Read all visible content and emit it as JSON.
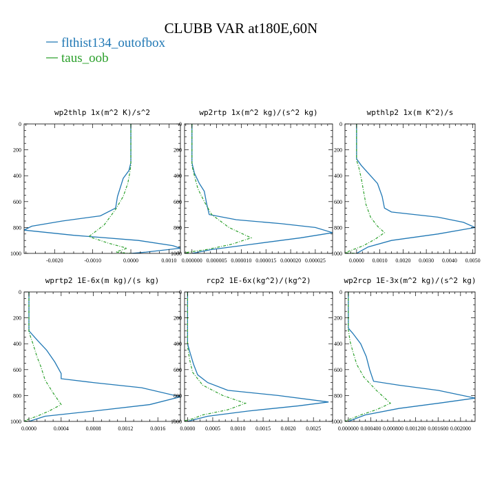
{
  "title": "CLUBB VAR at180E,60N",
  "colors": {
    "series_a": "#1f77b4",
    "series_b": "#2ca02c",
    "axis": "#000000"
  },
  "legend": [
    {
      "label": "flthist134_outofbox",
      "color": "#1f77b4",
      "dashed": false
    },
    {
      "label": "taus_oob",
      "color": "#2ca02c",
      "dashed": true
    }
  ],
  "chart_data": [
    {
      "type": "line",
      "title": "wp2thlp  1x(m^2 K)/s^2",
      "xlim": [
        -0.0028,
        0.0013
      ],
      "ylim": [
        0,
        1000
      ],
      "y_inverted": true,
      "y_ticks": [
        0,
        200,
        400,
        600,
        800,
        1000
      ],
      "x_ticks": [
        -0.002,
        -0.001,
        0.0,
        0.001
      ],
      "x_tick_labels": [
        "-0.0020",
        "-0.0010",
        "0.0000",
        "0.0010"
      ],
      "series": [
        {
          "name": "flthist134_outofbox",
          "points": [
            [
              0,
              0
            ],
            [
              0,
              300
            ],
            [
              -5e-05,
              360
            ],
            [
              -0.0002,
              420
            ],
            [
              -0.00035,
              560
            ],
            [
              -0.0004,
              650
            ],
            [
              -0.0008,
              710
            ],
            [
              -0.0018,
              750
            ],
            [
              -0.0026,
              790
            ],
            [
              -0.0028,
              820
            ],
            [
              -0.0015,
              860
            ],
            [
              0.0002,
              900
            ],
            [
              0.0011,
              940
            ],
            [
              0.0013,
              960
            ],
            [
              0.0004,
              990
            ],
            [
              0,
              1000
            ]
          ]
        },
        {
          "name": "taus_oob",
          "points": [
            [
              0,
              0
            ],
            [
              0,
              320
            ],
            [
              -3e-05,
              380
            ],
            [
              -8e-05,
              460
            ],
            [
              -0.0002,
              560
            ],
            [
              -0.0004,
              660
            ],
            [
              -0.0007,
              780
            ],
            [
              -0.0011,
              870
            ],
            [
              -0.0006,
              920
            ],
            [
              -0.0001,
              960
            ],
            [
              -0.0004,
              990
            ],
            [
              0,
              1000
            ]
          ]
        }
      ]
    },
    {
      "type": "line",
      "title": "wp2rtp  1x(m^2 kg)/(s^2 kg)",
      "xlim": [
        -1.5e-06,
        2.85e-05
      ],
      "ylim": [
        0,
        1000
      ],
      "y_inverted": true,
      "y_ticks": [
        0,
        200,
        400,
        600,
        800,
        1000
      ],
      "x_ticks": [
        0.0,
        5e-06,
        1e-05,
        1.5e-05,
        2e-05,
        2.5e-05
      ],
      "x_tick_labels": [
        "0.000000",
        "0.000005",
        "0.000010",
        "0.000015",
        "0.000020",
        "0.000025"
      ],
      "series": [
        {
          "name": "flthist134_outofbox",
          "points": [
            [
              0,
              0
            ],
            [
              0,
              300
            ],
            [
              5e-07,
              380
            ],
            [
              1.5e-06,
              460
            ],
            [
              2.5e-06,
              520
            ],
            [
              3e-06,
              620
            ],
            [
              3.5e-06,
              700
            ],
            [
              9e-06,
              740
            ],
            [
              1.8e-05,
              770
            ],
            [
              2.5e-05,
              800
            ],
            [
              2.85e-05,
              840
            ],
            [
              2.2e-05,
              880
            ],
            [
              1.2e-05,
              930
            ],
            [
              4e-06,
              970
            ],
            [
              0,
              1000
            ]
          ]
        },
        {
          "name": "taus_oob",
          "points": [
            [
              0,
              0
            ],
            [
              0,
              320
            ],
            [
              5e-07,
              400
            ],
            [
              1.2e-06,
              500
            ],
            [
              2.5e-06,
              600
            ],
            [
              4e-06,
              700
            ],
            [
              7.5e-06,
              800
            ],
            [
              1.2e-05,
              880
            ],
            [
              8e-06,
              930
            ],
            [
              3e-06,
              970
            ],
            [
              -1.5e-06,
              995
            ],
            [
              0,
              1000
            ]
          ]
        }
      ]
    },
    {
      "type": "line",
      "title": "wpthlp2  1x(m K^2)/s",
      "xlim": [
        -0.0005,
        0.0051
      ],
      "ylim": [
        0,
        1000
      ],
      "y_inverted": true,
      "y_ticks": [
        0,
        200,
        400,
        600,
        800,
        1000
      ],
      "x_ticks": [
        0.0,
        0.001,
        0.002,
        0.003,
        0.004,
        0.005
      ],
      "x_tick_labels": [
        "0.0000",
        "0.0010",
        "0.0020",
        "0.0030",
        "0.0040",
        "0.0050"
      ],
      "series": [
        {
          "name": "flthist134_outofbox",
          "points": [
            [
              0,
              0
            ],
            [
              0,
              270
            ],
            [
              0.0002,
              320
            ],
            [
              0.0005,
              380
            ],
            [
              0.0009,
              460
            ],
            [
              0.0011,
              560
            ],
            [
              0.0012,
              650
            ],
            [
              0.0015,
              680
            ],
            [
              0.0035,
              720
            ],
            [
              0.0046,
              760
            ],
            [
              0.0051,
              800
            ],
            [
              0.0035,
              850
            ],
            [
              0.0015,
              900
            ],
            [
              0.0005,
              950
            ],
            [
              0,
              1000
            ]
          ]
        },
        {
          "name": "taus_oob",
          "points": [
            [
              0,
              0
            ],
            [
              0,
              280
            ],
            [
              0.0001,
              340
            ],
            [
              0.0002,
              420
            ],
            [
              0.0003,
              520
            ],
            [
              0.0004,
              620
            ],
            [
              0.0006,
              720
            ],
            [
              0.0009,
              790
            ],
            [
              0.0012,
              840
            ],
            [
              0.0008,
              890
            ],
            [
              0.0003,
              940
            ],
            [
              -0.0005,
              995
            ],
            [
              0,
              1000
            ]
          ]
        }
      ]
    },
    {
      "type": "line",
      "title": "wprtp2  1E-6x(m kg)/(s kg)",
      "xlim": [
        -6e-05,
        0.00188
      ],
      "ylim": [
        0,
        1000
      ],
      "y_inverted": true,
      "y_ticks": [
        0,
        200,
        400,
        600,
        800,
        1000
      ],
      "x_ticks": [
        0.0,
        0.0004,
        0.0008,
        0.0012,
        0.0016
      ],
      "x_tick_labels": [
        "0.0000",
        "0.0004",
        "0.0008",
        "0.0012",
        "0.0016"
      ],
      "series": [
        {
          "name": "flthist134_outofbox",
          "points": [
            [
              0,
              0
            ],
            [
              0,
              300
            ],
            [
              0.0001,
              370
            ],
            [
              0.00022,
              450
            ],
            [
              0.00032,
              540
            ],
            [
              0.0004,
              630
            ],
            [
              0.0004,
              670
            ],
            [
              0.0008,
              700
            ],
            [
              0.0014,
              740
            ],
            [
              0.00188,
              810
            ],
            [
              0.0015,
              870
            ],
            [
              0.0008,
              920
            ],
            [
              0.0002,
              960
            ],
            [
              0,
              1000
            ]
          ]
        },
        {
          "name": "taus_oob",
          "points": [
            [
              0,
              0
            ],
            [
              0,
              310
            ],
            [
              5e-05,
              400
            ],
            [
              0.0001,
              500
            ],
            [
              0.00015,
              580
            ],
            [
              0.0002,
              680
            ],
            [
              0.0003,
              780
            ],
            [
              0.0004,
              870
            ],
            [
              0.00025,
              920
            ],
            [
              0.0001,
              960
            ],
            [
              -6e-05,
              995
            ],
            [
              0,
              1000
            ]
          ]
        }
      ]
    },
    {
      "type": "line",
      "title": "rcp2  1E-6x(kg^2)/(kg^2)",
      "xlim": [
        -6e-05,
        0.00288
      ],
      "ylim": [
        0,
        1000
      ],
      "y_inverted": true,
      "y_ticks": [
        0,
        200,
        400,
        600,
        800,
        1000
      ],
      "x_ticks": [
        0.0,
        0.0005,
        0.001,
        0.0015,
        0.002,
        0.0025
      ],
      "x_tick_labels": [
        "0.0000",
        "0.0005",
        "0.0010",
        "0.0015",
        "0.0020",
        "0.0025"
      ],
      "series": [
        {
          "name": "flthist134_outofbox",
          "points": [
            [
              0,
              0
            ],
            [
              0,
              400
            ],
            [
              5e-05,
              470
            ],
            [
              0.00012,
              560
            ],
            [
              0.0002,
              640
            ],
            [
              0.0004,
              700
            ],
            [
              0.0008,
              760
            ],
            [
              0.0018,
              800
            ],
            [
              0.0028,
              850
            ],
            [
              0.0022,
              880
            ],
            [
              0.0012,
              920
            ],
            [
              0.0004,
              960
            ],
            [
              0,
              1000
            ]
          ]
        },
        {
          "name": "taus_oob",
          "points": [
            [
              0,
              0
            ],
            [
              0,
              420
            ],
            [
              4e-05,
              520
            ],
            [
              0.0001,
              620
            ],
            [
              0.0003,
              720
            ],
            [
              0.0007,
              800
            ],
            [
              0.00115,
              860
            ],
            [
              0.0008,
              910
            ],
            [
              0.0003,
              950
            ],
            [
              0.0001,
              980
            ],
            [
              -6e-05,
              995
            ],
            [
              0,
              1000
            ]
          ]
        }
      ]
    },
    {
      "type": "line",
      "title": "wp2rcp  1E-3x(m^2 kg)/(s^2 kg)",
      "xlim": [
        -6e-05,
        0.00226
      ],
      "ylim": [
        0,
        1000
      ],
      "y_inverted": true,
      "y_ticks": [
        0,
        200,
        400,
        600,
        800,
        1000
      ],
      "x_ticks": [
        0.0,
        0.0004,
        0.0008,
        0.0012,
        0.0016,
        0.002
      ],
      "x_tick_labels": [
        "0.000000",
        "0.000400",
        "0.000800",
        "0.001200",
        "0.001600",
        "0.002000"
      ],
      "series": [
        {
          "name": "flthist134_outofbox",
          "points": [
            [
              0,
              0
            ],
            [
              0,
              280
            ],
            [
              8e-05,
              320
            ],
            [
              0.00022,
              400
            ],
            [
              0.00032,
              500
            ],
            [
              0.00038,
              600
            ],
            [
              0.00045,
              690
            ],
            [
              0.0009,
              720
            ],
            [
              0.0016,
              760
            ],
            [
              0.00226,
              820
            ],
            [
              0.0016,
              860
            ],
            [
              0.0009,
              900
            ],
            [
              0.0003,
              950
            ],
            [
              0,
              1000
            ]
          ]
        },
        {
          "name": "taus_oob",
          "points": [
            [
              0,
              0
            ],
            [
              0,
              290
            ],
            [
              3e-05,
              380
            ],
            [
              8e-05,
              460
            ],
            [
              0.00015,
              560
            ],
            [
              0.00028,
              660
            ],
            [
              0.0005,
              760
            ],
            [
              0.00075,
              860
            ],
            [
              0.0005,
              910
            ],
            [
              0.00022,
              950
            ],
            [
              5e-05,
              980
            ],
            [
              -6e-05,
              995
            ],
            [
              0,
              1000
            ]
          ]
        }
      ]
    }
  ]
}
